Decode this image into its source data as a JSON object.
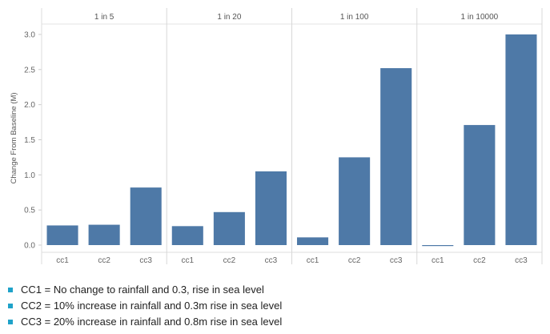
{
  "chart_data": {
    "type": "bar",
    "ylabel": "Change From Baseline (M)",
    "ylim": [
      -0.05,
      3.12
    ],
    "yticks": [
      "0.0",
      "0.5",
      "1.0",
      "1.5",
      "2.0",
      "2.5",
      "3.0"
    ],
    "categories": [
      "cc1",
      "cc2",
      "cc3"
    ],
    "panels": [
      {
        "title": "1 in 5",
        "values": [
          0.28,
          0.29,
          0.82
        ]
      },
      {
        "title": "1 in 20",
        "values": [
          0.27,
          0.47,
          1.05
        ]
      },
      {
        "title": "1 in 100",
        "values": [
          0.11,
          1.25,
          2.52
        ]
      },
      {
        "title": "1 in 10000",
        "values": [
          -0.01,
          1.71,
          3.0
        ]
      }
    ],
    "grid": false,
    "bar_color": "#4e79a7"
  },
  "notes": {
    "bullet_color": "#1fa2c9",
    "items": [
      "CC1 = No change to rainfall and 0.3, rise in sea level",
      "CC2 = 10% increase in rainfall and 0.3m rise in sea level",
      "CC3 = 20% increase in rainfall and 0.8m rise in sea level"
    ]
  }
}
